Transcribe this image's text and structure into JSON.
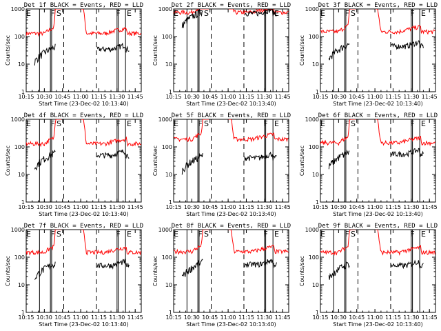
{
  "chart_data": [
    {
      "type": "line",
      "title": "Det 1f BLACK = Events, RED = LLD",
      "xlabel": "Start Time (23-Dec-02 10:13:40)",
      "ylabel": "Counts/sec",
      "yscale": "log",
      "ylim": [
        1,
        1000
      ],
      "xlim": [
        "10:15",
        "11:50"
      ],
      "x_ticks": [
        "10:15",
        "10:30",
        "10:45",
        "11:00",
        "11:15",
        "11:30",
        "11:45"
      ],
      "y_ticks": [
        "1",
        "10",
        "100",
        "1000"
      ],
      "markers": [
        "E",
        "F",
        "S",
        "F",
        "E"
      ],
      "series": [
        {
          "name": "BLACK = Events",
          "color": "#000000",
          "level": 35
        },
        {
          "name": "RED = LLD",
          "color": "#ff0000",
          "level": 130
        }
      ]
    },
    {
      "type": "line",
      "title": "Det 2f BLACK = Events, RED = LLD",
      "xlabel": "Start Time (23-Dec-02 10:13:40)",
      "ylabel": "Counts/sec",
      "yscale": "log",
      "ylim": [
        1,
        1000
      ],
      "xlim": [
        "10:15",
        "11:50"
      ],
      "x_ticks": [
        "10:15",
        "10:30",
        "10:45",
        "11:00",
        "11:15",
        "11:30",
        "11:45"
      ],
      "y_ticks": [
        "1",
        "10",
        "100",
        "1000"
      ],
      "markers": [
        "E",
        "F",
        "S",
        "F",
        "E"
      ],
      "series": [
        {
          "name": "BLACK = Events",
          "color": "#000000",
          "level": 700
        },
        {
          "name": "RED = LLD",
          "color": "#ff0000",
          "level": 750
        }
      ]
    },
    {
      "type": "line",
      "title": "Det 3f BLACK = Events, RED = LLD",
      "xlabel": "Start Time (23-Dec-02 10:13:40)",
      "ylabel": "Counts/sec",
      "yscale": "log",
      "ylim": [
        1,
        1000
      ],
      "xlim": [
        "10:15",
        "11:50"
      ],
      "x_ticks": [
        "10:15",
        "10:30",
        "10:45",
        "11:00",
        "11:15",
        "11:30",
        "11:45"
      ],
      "y_ticks": [
        "1",
        "10",
        "100",
        "1000"
      ],
      "markers": [
        "E",
        "F",
        "S",
        "F",
        "E"
      ],
      "series": [
        {
          "name": "BLACK = Events",
          "color": "#000000",
          "level": 45
        },
        {
          "name": "RED = LLD",
          "color": "#ff0000",
          "level": 150
        }
      ]
    },
    {
      "type": "line",
      "title": "Det 4f BLACK = Events, RED = LLD",
      "xlabel": "Start Time (23-Dec-02 10:13:40)",
      "ylabel": "Counts/sec",
      "yscale": "log",
      "ylim": [
        1,
        1000
      ],
      "xlim": [
        "10:15",
        "11:50"
      ],
      "x_ticks": [
        "10:15",
        "10:30",
        "10:45",
        "11:00",
        "11:15",
        "11:30",
        "11:45"
      ],
      "y_ticks": [
        "1",
        "10",
        "100",
        "1000"
      ],
      "markers": [
        "E",
        "F",
        "S",
        "F",
        "E"
      ],
      "series": [
        {
          "name": "BLACK = Events",
          "color": "#000000",
          "level": 50
        },
        {
          "name": "RED = LLD",
          "color": "#ff0000",
          "level": 130
        }
      ]
    },
    {
      "type": "line",
      "title": "Det 5f BLACK = Events, RED = LLD",
      "xlabel": "Start Time (23-Dec-02 10:13:40)",
      "ylabel": "Counts/sec",
      "yscale": "log",
      "ylim": [
        1,
        1000
      ],
      "xlim": [
        "10:15",
        "11:50"
      ],
      "x_ticks": [
        "10:15",
        "10:30",
        "10:45",
        "11:00",
        "11:15",
        "11:30",
        "11:45"
      ],
      "y_ticks": [
        "1",
        "10",
        "100",
        "1000"
      ],
      "markers": [
        "E",
        "F",
        "S",
        "F",
        "E"
      ],
      "series": [
        {
          "name": "BLACK = Events",
          "color": "#000000",
          "level": 40
        },
        {
          "name": "RED = LLD",
          "color": "#ff0000",
          "level": 190
        }
      ]
    },
    {
      "type": "line",
      "title": "Det 6f BLACK = Events, RED = LLD",
      "xlabel": "Start Time (23-Dec-02 10:13:40)",
      "ylabel": "Counts/sec",
      "yscale": "log",
      "ylim": [
        1,
        1000
      ],
      "xlim": [
        "10:15",
        "11:50"
      ],
      "x_ticks": [
        "10:15",
        "10:30",
        "10:45",
        "11:00",
        "11:15",
        "11:30",
        "11:45"
      ],
      "y_ticks": [
        "1",
        "10",
        "100",
        "1000"
      ],
      "markers": [
        "E",
        "F",
        "S",
        "F",
        "E"
      ],
      "series": [
        {
          "name": "BLACK = Events",
          "color": "#000000",
          "level": 55
        },
        {
          "name": "RED = LLD",
          "color": "#ff0000",
          "level": 140
        }
      ]
    },
    {
      "type": "line",
      "title": "Det 7f BLACK = Events, RED = LLD",
      "xlabel": "Start Time (23-Dec-02 10:13:40)",
      "ylabel": "Counts/sec",
      "yscale": "log",
      "ylim": [
        1,
        1000
      ],
      "xlim": [
        "10:15",
        "11:50"
      ],
      "x_ticks": [
        "10:15",
        "10:30",
        "10:45",
        "11:00",
        "11:15",
        "11:30",
        "11:45"
      ],
      "y_ticks": [
        "1",
        "10",
        "100",
        "1000"
      ],
      "markers": [
        "E",
        "F",
        "S",
        "F",
        "E"
      ],
      "series": [
        {
          "name": "BLACK = Events",
          "color": "#000000",
          "level": 50
        },
        {
          "name": "RED = LLD",
          "color": "#ff0000",
          "level": 150
        }
      ]
    },
    {
      "type": "line",
      "title": "Det 8f BLACK = Events, RED = LLD",
      "xlabel": "Start Time (23-Dec-02 10:13:40)",
      "ylabel": "Counts/sec",
      "yscale": "log",
      "ylim": [
        1,
        1000
      ],
      "xlim": [
        "10:15",
        "11:50"
      ],
      "x_ticks": [
        "10:15",
        "10:30",
        "10:45",
        "11:00",
        "11:15",
        "11:30",
        "11:45"
      ],
      "y_ticks": [
        "1",
        "10",
        "100",
        "1000"
      ],
      "markers": [
        "E",
        "F",
        "S",
        "F",
        "E"
      ],
      "series": [
        {
          "name": "BLACK = Events",
          "color": "#000000",
          "level": 55
        },
        {
          "name": "RED = LLD",
          "color": "#ff0000",
          "level": 160
        }
      ]
    },
    {
      "type": "line",
      "title": "Det 9f BLACK = Events, RED = LLD",
      "xlabel": "Start Time (23-Dec-02 10:13:40)",
      "ylabel": "Counts/sec",
      "yscale": "log",
      "ylim": [
        1,
        1000
      ],
      "xlim": [
        "10:15",
        "11:50"
      ],
      "x_ticks": [
        "10:15",
        "10:30",
        "10:45",
        "11:00",
        "11:15",
        "11:30",
        "11:45"
      ],
      "y_ticks": [
        "1",
        "10",
        "100",
        "1000"
      ],
      "markers": [
        "E",
        "F",
        "S",
        "F",
        "E"
      ],
      "series": [
        {
          "name": "BLACK = Events",
          "color": "#000000",
          "level": 50
        },
        {
          "name": "RED = LLD",
          "color": "#ff0000",
          "level": 150
        }
      ]
    }
  ]
}
